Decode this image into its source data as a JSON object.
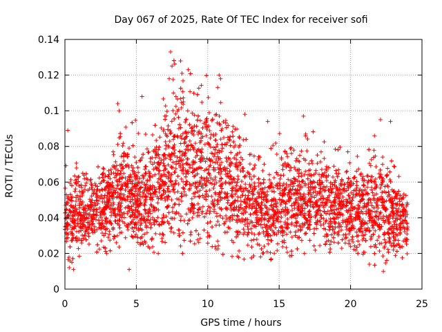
{
  "chart_data": {
    "type": "scatter",
    "title": "Day 067 of 2025, Rate Of TEC Index for receiver sofi",
    "xlabel": "GPS time / hours",
    "ylabel": "ROTI / TECUs",
    "xlim": [
      0,
      25
    ],
    "ylim": [
      0,
      0.14
    ],
    "xticks": [
      0,
      5,
      10,
      15,
      20,
      25
    ],
    "xtick_labels": [
      "0",
      "5",
      "10",
      "15",
      "20",
      "25"
    ],
    "yticks": [
      0,
      0.02,
      0.04,
      0.06,
      0.08,
      0.1,
      0.12,
      0.14
    ],
    "ytick_labels": [
      "0",
      "0.02",
      "0.04",
      "0.06",
      "0.08",
      "0.1",
      "0.12",
      "0.14"
    ],
    "grid": true,
    "marker": "+",
    "color": "#ff0000",
    "series": [
      {
        "name": "ROTI",
        "x_range": [
          0,
          24
        ],
        "band_samples": [
          {
            "x": 0.5,
            "low": 0.015,
            "high": 0.08
          },
          {
            "x": 2.0,
            "low": 0.02,
            "high": 0.075
          },
          {
            "x": 3.8,
            "low": 0.02,
            "high": 0.1
          },
          {
            "x": 6.0,
            "low": 0.02,
            "high": 0.09
          },
          {
            "x": 7.5,
            "low": 0.02,
            "high": 0.13
          },
          {
            "x": 8.2,
            "low": 0.02,
            "high": 0.127
          },
          {
            "x": 10.8,
            "low": 0.02,
            "high": 0.12
          },
          {
            "x": 13.5,
            "low": 0.015,
            "high": 0.08
          },
          {
            "x": 16.6,
            "low": 0.02,
            "high": 0.095
          },
          {
            "x": 19.5,
            "low": 0.02,
            "high": 0.08
          },
          {
            "x": 22.5,
            "low": 0.01,
            "high": 0.09
          },
          {
            "x": 24.0,
            "low": 0.02,
            "high": 0.06
          }
        ],
        "outliers": [
          {
            "x": 7.4,
            "y": 0.133
          },
          {
            "x": 7.5,
            "y": 0.125
          },
          {
            "x": 7.3,
            "y": 0.118
          },
          {
            "x": 7.6,
            "y": 0.11
          },
          {
            "x": 8.1,
            "y": 0.128
          },
          {
            "x": 8.2,
            "y": 0.121
          },
          {
            "x": 8.3,
            "y": 0.105
          },
          {
            "x": 10.8,
            "y": 0.12
          },
          {
            "x": 10.9,
            "y": 0.118
          },
          {
            "x": 10.7,
            "y": 0.113
          },
          {
            "x": 5.4,
            "y": 0.108
          },
          {
            "x": 3.7,
            "y": 0.104
          },
          {
            "x": 3.8,
            "y": 0.1
          },
          {
            "x": 12.6,
            "y": 0.098
          },
          {
            "x": 16.7,
            "y": 0.097
          },
          {
            "x": 14.2,
            "y": 0.094
          },
          {
            "x": 22.1,
            "y": 0.095
          },
          {
            "x": 22.8,
            "y": 0.094
          },
          {
            "x": 8.6,
            "y": 0.1
          },
          {
            "x": 7.0,
            "y": 0.097
          },
          {
            "x": 0.2,
            "y": 0.089
          },
          {
            "x": 0.3,
            "y": 0.012
          },
          {
            "x": 22.3,
            "y": 0.01
          },
          {
            "x": 4.5,
            "y": 0.011
          },
          {
            "x": 0.6,
            "y": 0.011
          }
        ]
      }
    ]
  }
}
